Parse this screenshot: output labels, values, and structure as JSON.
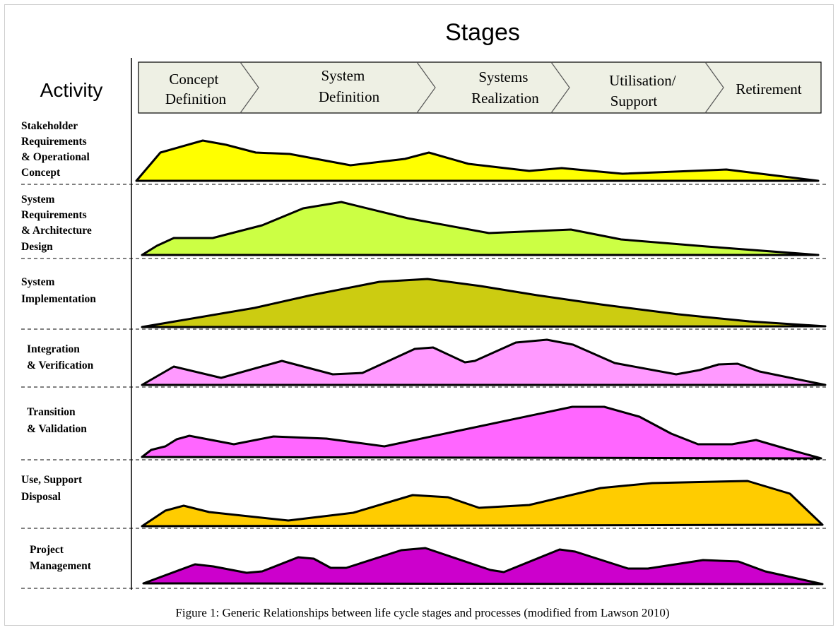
{
  "title": "Stages",
  "activity_header": "Activity",
  "stages": [
    {
      "lines": [
        "Concept",
        "Definition"
      ]
    },
    {
      "lines": [
        "System",
        "Definition"
      ]
    },
    {
      "lines": [
        "Systems",
        "Realization"
      ]
    },
    {
      "lines": [
        "Utilisation/",
        "Support"
      ]
    },
    {
      "lines": [
        "Retirement"
      ]
    }
  ],
  "activities": [
    {
      "lines": [
        "Stakeholder",
        "Requirements",
        "& Operational",
        "Concept"
      ],
      "color": "#ffff00"
    },
    {
      "lines": [
        "System",
        "Requirements",
        "& Architecture",
        "Design"
      ],
      "color": "#ccff44"
    },
    {
      "lines": [
        "System",
        "Implementation"
      ],
      "color": "#cccc11"
    },
    {
      "lines": [
        "Integration",
        "& Verification"
      ],
      "color": "#ff99ff"
    },
    {
      "lines": [
        "Transition",
        "& Validation"
      ],
      "color": "#ff66ff"
    },
    {
      "lines": [
        "Use, Support",
        "Disposal"
      ],
      "color": "#ffcc00"
    },
    {
      "lines": [
        "Project",
        "Management"
      ],
      "color": "#cc00cc"
    }
  ],
  "caption": "Figure 1: Generic Relationships between life cycle stages and processes (modified from Lawson 2010)",
  "colors": {
    "stage_bar_fill": "#eef0e4",
    "outline": "#000000"
  }
}
